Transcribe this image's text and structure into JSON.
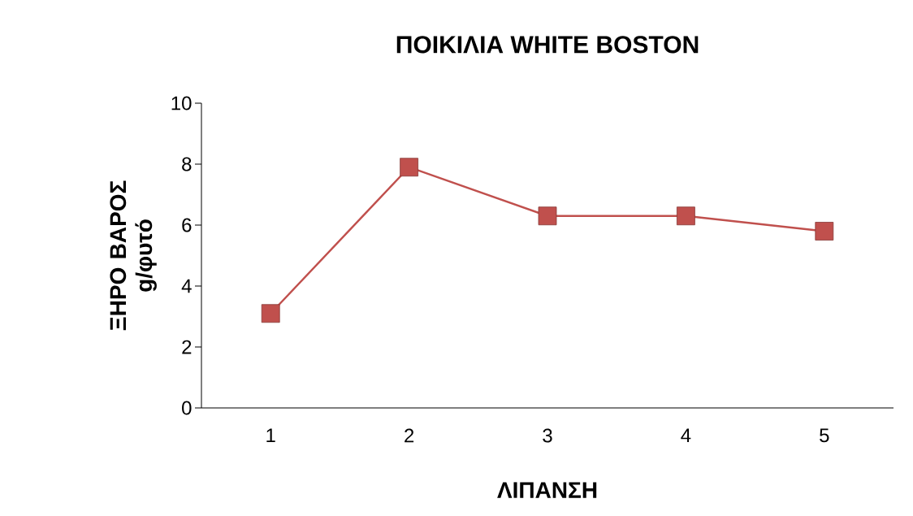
{
  "chart_data": {
    "type": "line",
    "title": "ΠΟΙΚΙΛΙΑ WHITE BOSTON",
    "xlabel": "ΛΙΠΑΝΣΗ",
    "ylabel": "ΞΗΡΟ ΒΑΡΟΣ g/φυτό",
    "categories": [
      "1",
      "2",
      "3",
      "4",
      "5"
    ],
    "values": [
      3.1,
      7.9,
      6.3,
      6.3,
      5.8
    ],
    "color": "#c0504d",
    "marker": "square",
    "line_style": "solid",
    "grid": false,
    "ylim": [
      0,
      10
    ],
    "yticks": [
      0,
      2,
      4,
      6,
      8,
      10
    ]
  }
}
